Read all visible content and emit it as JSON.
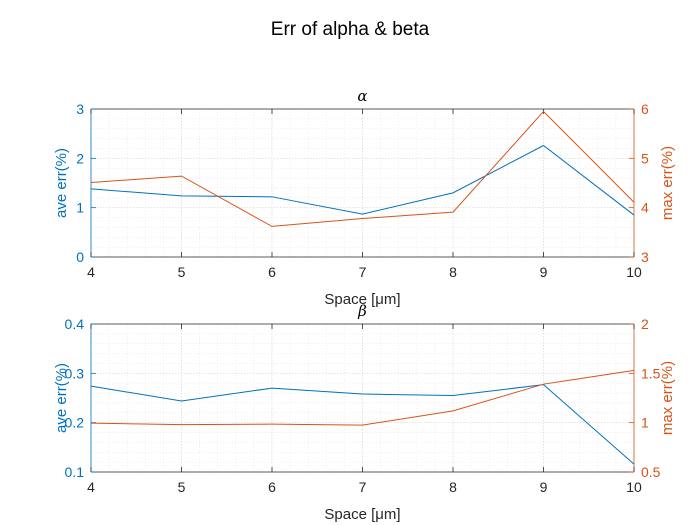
{
  "figure": {
    "title": "Err of alpha & beta"
  },
  "colors": {
    "left": "#0072BD",
    "right": "#D95319",
    "axis": "#262626",
    "grid": "#e3e3e3"
  },
  "chart_data": [
    {
      "type": "line",
      "title": "α",
      "xlabel": "Space [μm]",
      "x": [
        4,
        5,
        6,
        7,
        8,
        9,
        10
      ],
      "xlim": [
        4,
        10
      ],
      "xticks": [
        "4",
        "5",
        "6",
        "7",
        "8",
        "9",
        "10"
      ],
      "grid": true,
      "left_axis": {
        "ylabel": "ave err(%)",
        "ylim": [
          0,
          3
        ],
        "ticks": [
          0,
          1,
          2,
          3
        ],
        "tick_labels": [
          "0",
          "1",
          "2",
          "3"
        ],
        "values": [
          1.38,
          1.24,
          1.22,
          0.87,
          1.3,
          2.26,
          0.85
        ]
      },
      "right_axis": {
        "ylabel": "max err(%)",
        "ylim": [
          3,
          6
        ],
        "ticks": [
          3,
          4,
          5,
          6
        ],
        "tick_labels": [
          "3",
          "4",
          "5",
          "6"
        ],
        "values": [
          4.51,
          4.64,
          3.62,
          3.78,
          3.91,
          5.95,
          4.11
        ]
      }
    },
    {
      "type": "line",
      "title": "β",
      "xlabel": "Space [μm]",
      "x": [
        4,
        5,
        6,
        7,
        8,
        9,
        10
      ],
      "xlim": [
        4,
        10
      ],
      "xticks": [
        "4",
        "5",
        "6",
        "7",
        "8",
        "9",
        "10"
      ],
      "grid": true,
      "left_axis": {
        "ylabel": "ave err(%)",
        "ylim": [
          0.1,
          0.4
        ],
        "ticks": [
          0.1,
          0.2,
          0.3,
          0.4
        ],
        "tick_labels": [
          "0.1",
          "0.2",
          "0.3",
          "0.4"
        ],
        "values": [
          0.274,
          0.244,
          0.27,
          0.258,
          0.255,
          0.277,
          0.116
        ]
      },
      "right_axis": {
        "ylabel": "max err(%)",
        "ylim": [
          0.5,
          2
        ],
        "ticks": [
          0.5,
          1,
          1.5,
          2
        ],
        "tick_labels": [
          "0.5",
          "1",
          "1.5",
          "2"
        ],
        "values": [
          0.995,
          0.98,
          0.985,
          0.975,
          1.12,
          1.39,
          1.53
        ]
      }
    }
  ]
}
